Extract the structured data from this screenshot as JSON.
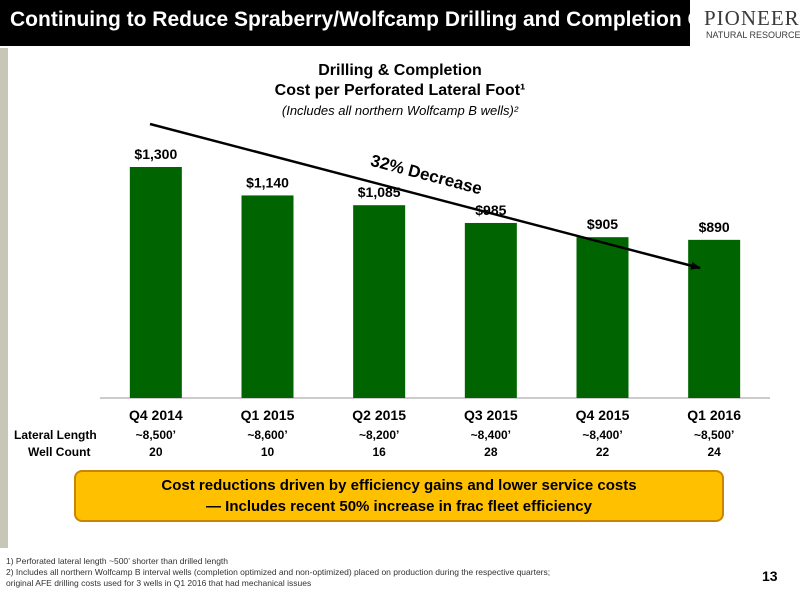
{
  "header": {
    "title": "Continuing to Reduce Spraberry/Wolfcamp Drilling and Completion Costs",
    "logo_name": "PIONEER",
    "logo_sub": "NATURAL RESOURCES"
  },
  "chart_data": {
    "type": "bar",
    "title_line1": "Drilling & Completion",
    "title_line2": "Cost per Perforated Lateral Foot¹",
    "subtitle": "(Includes all northern Wolfcamp B wells)²",
    "categories": [
      "Q4 2014",
      "Q1 2015",
      "Q2 2015",
      "Q3 2015",
      "Q4 2015",
      "Q1 2016"
    ],
    "values": [
      1300,
      1140,
      1085,
      985,
      905,
      890
    ],
    "value_labels": [
      "$1,300",
      "$1,140",
      "$1,085",
      "$985",
      "$905",
      "$890"
    ],
    "ylim": [
      0,
      1300
    ],
    "bar_color": "#006400",
    "annotation": "32% Decrease",
    "lateral_length_label": "Lateral Length",
    "well_count_label": "Well Count",
    "lateral_lengths": [
      "~8,500’",
      "~8,600’",
      "~8,200’",
      "~8,400’",
      "~8,400’",
      "~8,500’"
    ],
    "well_counts": [
      "20",
      "10",
      "16",
      "28",
      "22",
      "24"
    ],
    "grid": false,
    "legend": "none"
  },
  "callout": {
    "line1": "Cost reductions driven by efficiency gains and lower service costs",
    "line2": "—  Includes recent 50% increase in frac fleet efficiency",
    "color": "#ffc000"
  },
  "footnotes": [
    "1)  Perforated lateral length ~500’ shorter than drilled length",
    "2)  Includes all northern Wolfcamp B interval wells (completion optimized and non-optimized) placed on production during the respective quarters;",
    "      original AFE drilling costs used for 3 wells in Q1 2016 that had mechanical issues"
  ],
  "page_number": "13"
}
